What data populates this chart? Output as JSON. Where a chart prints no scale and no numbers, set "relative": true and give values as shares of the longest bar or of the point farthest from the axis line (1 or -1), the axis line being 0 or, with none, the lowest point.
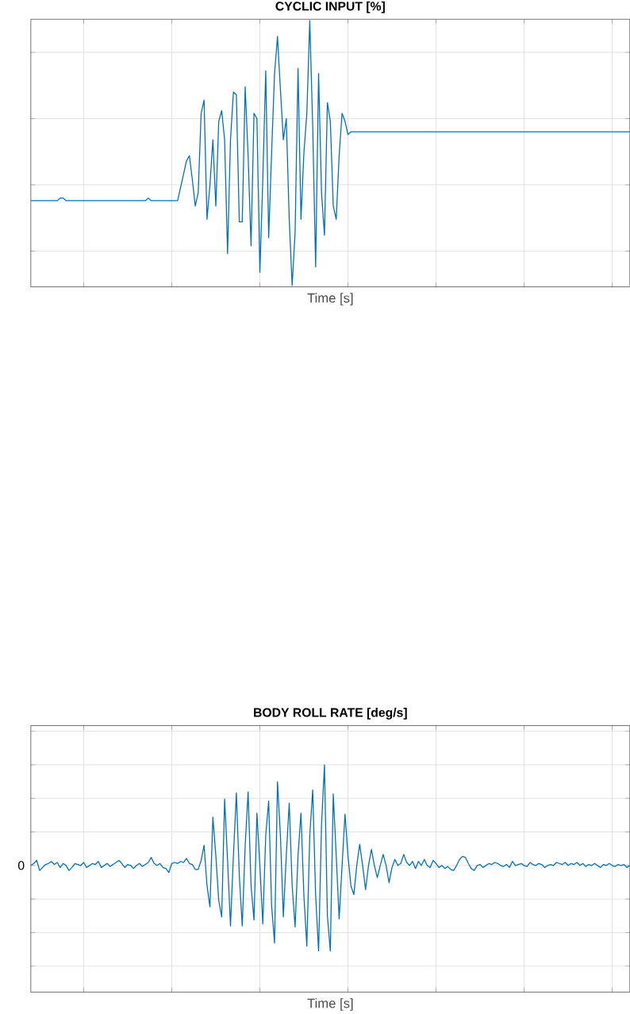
{
  "chart_data": [
    {
      "type": "line",
      "title": "CYCLIC INPUT [%]",
      "xlabel": "Time [s]",
      "relative": true,
      "grid": true,
      "tick_labels": false,
      "color": "#0072bd",
      "categories": [
        null,
        null,
        null,
        null,
        null,
        null,
        null,
        null,
        null,
        null,
        null,
        null,
        null,
        null,
        null,
        null,
        null,
        null,
        null,
        null,
        null,
        null,
        null,
        null,
        null,
        null,
        null,
        null,
        null,
        null,
        null,
        null,
        null,
        null,
        null,
        null,
        null,
        null,
        null,
        null,
        null,
        null,
        null,
        null,
        null,
        null,
        null,
        null,
        null,
        null,
        null,
        null,
        null,
        null,
        null,
        null,
        null,
        null,
        null,
        null,
        null,
        null,
        null,
        null,
        null,
        null,
        null,
        null,
        null,
        null,
        null,
        null,
        null,
        null,
        null,
        null,
        null,
        null,
        null,
        null,
        null,
        null,
        null,
        null,
        null,
        null,
        null,
        null,
        null,
        null,
        null,
        null,
        null,
        null,
        null,
        null,
        null,
        null,
        null,
        null,
        null,
        null,
        null,
        null,
        null,
        null,
        null,
        null,
        null,
        null,
        null,
        null,
        null,
        null,
        null,
        null,
        null,
        null,
        null,
        null,
        null,
        null,
        null,
        null,
        null,
        null,
        null,
        null,
        null,
        null,
        null,
        null,
        null,
        null,
        null,
        null,
        null,
        null,
        null,
        null,
        null,
        null,
        null,
        null,
        null,
        null,
        null,
        null,
        null,
        null,
        null,
        null,
        null,
        null,
        null,
        null,
        null,
        null,
        null,
        null,
        null,
        null,
        null,
        null,
        null,
        null,
        null,
        null,
        null,
        null,
        null,
        null,
        null,
        null,
        null,
        null,
        null,
        null,
        null,
        null,
        null,
        null,
        null,
        null,
        null,
        null,
        null,
        null,
        null,
        null,
        null,
        null,
        null,
        null,
        null,
        null,
        null,
        null,
        null,
        null,
        null,
        null,
        null,
        null,
        null
      ],
      "values": [
        0.32,
        0.32,
        0.32,
        0.32,
        0.32,
        0.32,
        0.32,
        0.32,
        0.32,
        0.32,
        0.33,
        0.33,
        0.32,
        0.32,
        0.32,
        0.32,
        0.32,
        0.32,
        0.32,
        0.32,
        0.32,
        0.32,
        0.32,
        0.32,
        0.32,
        0.32,
        0.32,
        0.32,
        0.32,
        0.32,
        0.32,
        0.32,
        0.32,
        0.32,
        0.32,
        0.32,
        0.32,
        0.32,
        0.32,
        0.32,
        0.33,
        0.32,
        0.32,
        0.32,
        0.32,
        0.32,
        0.32,
        0.32,
        0.32,
        0.32,
        0.32,
        0.37,
        0.42,
        0.47,
        0.49,
        0.4,
        0.3,
        0.35,
        0.65,
        0.7,
        0.25,
        0.38,
        0.55,
        0.3,
        0.62,
        0.66,
        0.55,
        0.12,
        0.55,
        0.73,
        0.72,
        0.24,
        0.24,
        0.75,
        0.49,
        0.15,
        0.65,
        0.63,
        0.05,
        0.4,
        0.81,
        0.18,
        0.5,
        0.8,
        0.94,
        0.74,
        0.55,
        0.63,
        0.25,
        0.0,
        0.2,
        0.82,
        0.25,
        0.5,
        0.65,
        1.0,
        0.6,
        0.07,
        0.8,
        0.35,
        0.19,
        0.69,
        0.62,
        0.3,
        0.25,
        0.49,
        0.65,
        0.62,
        0.57,
        0.58,
        0.58,
        0.58,
        0.58,
        0.58,
        0.58,
        0.58,
        0.58,
        0.58,
        0.58,
        0.58,
        0.58,
        0.58,
        0.58,
        0.58,
        0.58,
        0.58,
        0.58,
        0.58,
        0.58,
        0.58,
        0.58,
        0.58,
        0.58,
        0.58,
        0.58,
        0.58,
        0.58,
        0.58,
        0.58,
        0.58,
        0.58,
        0.58,
        0.58,
        0.58,
        0.58,
        0.58,
        0.58,
        0.58,
        0.58,
        0.58,
        0.58,
        0.58,
        0.58,
        0.58,
        0.58,
        0.58,
        0.58,
        0.58,
        0.58,
        0.58,
        0.58,
        0.58,
        0.58,
        0.58,
        0.58,
        0.58,
        0.58,
        0.58,
        0.58,
        0.58,
        0.58,
        0.58,
        0.58,
        0.58,
        0.58,
        0.58,
        0.58,
        0.58,
        0.58,
        0.58,
        0.58,
        0.58,
        0.58,
        0.58,
        0.58,
        0.58,
        0.58,
        0.58,
        0.58,
        0.58,
        0.58,
        0.58,
        0.58,
        0.58,
        0.58,
        0.58,
        0.58,
        0.58,
        0.58,
        0.58,
        0.58,
        0.58,
        0.58,
        0.58,
        0.58
      ]
    },
    {
      "type": "line",
      "title": "BODY ROLL RATE [deg/s]",
      "xlabel": "Time [s]",
      "relative": true,
      "grid": true,
      "tick_labels": false,
      "color": "#0072bd",
      "annotations": [
        "0"
      ],
      "categories": [
        null,
        null,
        null,
        null,
        null,
        null,
        null,
        null,
        null,
        null,
        null,
        null,
        null,
        null,
        null,
        null,
        null,
        null,
        null,
        null,
        null,
        null,
        null,
        null,
        null,
        null,
        null,
        null,
        null,
        null,
        null,
        null,
        null,
        null,
        null,
        null,
        null,
        null,
        null,
        null,
        null,
        null,
        null,
        null,
        null,
        null,
        null,
        null,
        null,
        null,
        null,
        null,
        null,
        null,
        null,
        null,
        null,
        null,
        null,
        null,
        null,
        null,
        null,
        null,
        null,
        null,
        null,
        null,
        null,
        null,
        null,
        null,
        null,
        null,
        null,
        null,
        null,
        null,
        null,
        null,
        null,
        null,
        null,
        null,
        null,
        null,
        null,
        null,
        null,
        null,
        null,
        null,
        null,
        null,
        null,
        null,
        null,
        null,
        null,
        null,
        null,
        null,
        null,
        null,
        null,
        null,
        null,
        null,
        null,
        null,
        null,
        null,
        null,
        null,
        null,
        null,
        null,
        null,
        null,
        null,
        null,
        null,
        null,
        null,
        null,
        null,
        null,
        null,
        null,
        null,
        null,
        null,
        null,
        null,
        null,
        null,
        null,
        null,
        null,
        null,
        null,
        null,
        null,
        null,
        null,
        null,
        null,
        null,
        null,
        null,
        null,
        null,
        null,
        null,
        null,
        null,
        null,
        null,
        null,
        null,
        null,
        null,
        null,
        null,
        null,
        null,
        null,
        null,
        null,
        null,
        null,
        null,
        null,
        null,
        null,
        null,
        null,
        null,
        null,
        null,
        null,
        null,
        null,
        null,
        null,
        null,
        null,
        null,
        null,
        null,
        null,
        null,
        null,
        null,
        null,
        null,
        null,
        null,
        null,
        null,
        null,
        null,
        null,
        null,
        null
      ],
      "values": [
        0,
        0.02,
        0.05,
        -0.05,
        -0.02,
        0.01,
        0.02,
        0.04,
        0.01,
        0.03,
        -0.02,
        0.02,
        0,
        -0.05,
        -0.02,
        0.02,
        0.01,
        0,
        0.03,
        -0.02,
        0,
        0.02,
        0.01,
        0.04,
        -0.02,
        0,
        0.02,
        -0.01,
        0.01,
        0.03,
        0.05,
        0.02,
        -0.02,
        0.01,
        0,
        -0.03,
        0,
        0.02,
        -0.01,
        0.01,
        0.03,
        0.08,
        0.02,
        0,
        0.02,
        -0.02,
        -0.03,
        -0.07,
        0.02,
        0.03,
        0.02,
        0.04,
        0.03,
        0.07,
        0.02,
        0.01,
        -0.04,
        -0.04,
        0.05,
        0.2,
        -0.2,
        -0.41,
        0.48,
        0.1,
        -0.35,
        -0.51,
        0.66,
        0.05,
        -0.6,
        0.1,
        0.72,
        -0.1,
        -0.6,
        0.2,
        0.73,
        -0.2,
        -0.54,
        0.52,
        0,
        -0.58,
        0.3,
        0.64,
        -0.4,
        -0.77,
        0.83,
        0.3,
        -0.51,
        0.1,
        0.62,
        -0.2,
        -0.61,
        0.1,
        0.52,
        -0.3,
        -0.8,
        0.3,
        0.75,
        -0.3,
        -0.85,
        0.4,
        1.0,
        -0.5,
        -0.85,
        0.71,
        0.1,
        -0.53,
        0,
        0.51,
        0.1,
        -0.2,
        -0.29,
        0,
        0.21,
        0,
        -0.24,
        0,
        0.16,
        0,
        -0.12,
        0,
        0.11,
        0,
        -0.17,
        -0.02,
        0.06,
        0,
        0.02,
        0.11,
        0.03,
        0,
        0.04,
        -0.03,
        0.04,
        0,
        0.06,
        0,
        -0.02,
        0.05,
        0.02,
        -0.02,
        0,
        -0.03,
        -0.01,
        -0.04,
        -0.05,
        0,
        0.06,
        0.09,
        0.08,
        0.02,
        -0.03,
        -0.05,
        0,
        0.01,
        -0.02,
        0,
        0.02,
        0.01,
        0.03,
        0.02,
        0,
        -0.01,
        0.01,
        -0.02,
        0.04,
        0,
        0.01,
        0.02,
        0,
        -0.01,
        0.03,
        0.01,
        0,
        0.02,
        0.01,
        -0.02,
        0,
        0.01,
        0,
        0.03,
        0.02,
        0.01,
        0.03,
        0,
        0.02,
        0.01,
        0.03,
        0,
        0.02,
        -0.01,
        0.01,
        0,
        0.02,
        0,
        -0.02,
        0.01,
        0,
        0.02,
        0,
        -0.01,
        0.01,
        0,
        0.01,
        -0.02,
        0
      ]
    }
  ]
}
